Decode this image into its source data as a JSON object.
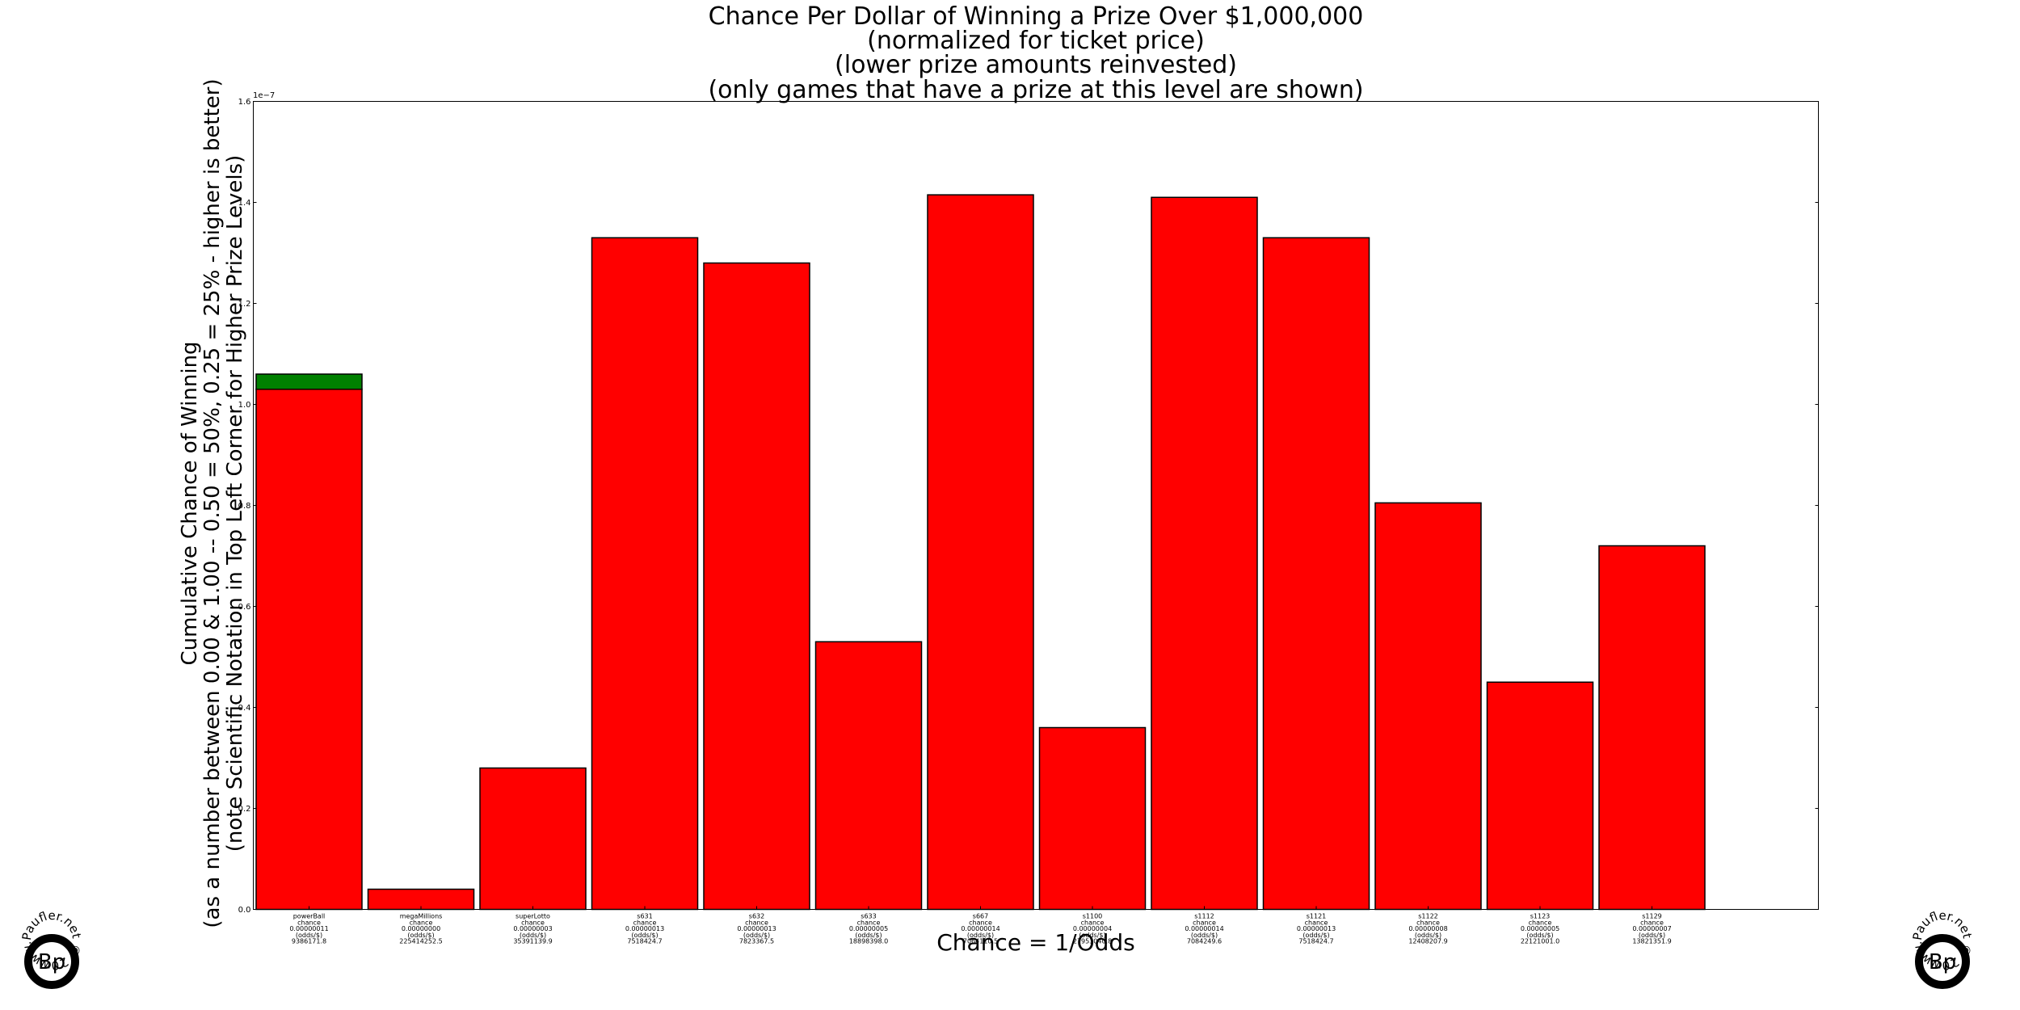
{
  "chart_data": {
    "type": "bar",
    "stacked": true,
    "title_lines": [
      "Chance Per Dollar of Winning a Prize Over $1,000,000",
      "(normalized for ticket price)",
      "(lower prize amounts reinvested)",
      "(only games that have a prize at this level are shown)"
    ],
    "ylabel_lines": [
      "Cumulative Chance of Winning",
      "(as a number between 0.00 & 1.00 -- 0.50 = 50%, 0.25 = 25% - higher is better)",
      "(note Scientific Notation in Top Left Corner for Higher Prize Levels)"
    ],
    "xlabel": "Chance = 1/Odds",
    "y_offset_label": "1e−7",
    "yticks": [
      "0.0",
      "0.2",
      "0.4",
      "0.6",
      "0.8",
      "1.0",
      "1.2",
      "1.4",
      "1.6"
    ],
    "ylim": [
      0,
      1.6
    ],
    "grid": false,
    "colors": {
      "base": "#ff0000",
      "extra": "#008000"
    },
    "categories": [
      {
        "lines": [
          "powerBall",
          "chance",
          "0.00000011",
          "(odds/$)",
          "9386171.8"
        ],
        "base": 1.03,
        "extra": 0.03
      },
      {
        "lines": [
          "megaMillions",
          "chance",
          "0.00000000",
          "(odds/$)",
          "225414252.5"
        ],
        "base": 0.04,
        "extra": 0
      },
      {
        "lines": [
          "superLotto",
          "chance",
          "0.00000003",
          "(odds/$)",
          "35391139.9"
        ],
        "base": 0.28,
        "extra": 0
      },
      {
        "lines": [
          "s631",
          "chance",
          "0.00000013",
          "(odds/$)",
          "7518424.7"
        ],
        "base": 1.33,
        "extra": 0
      },
      {
        "lines": [
          "s632",
          "chance",
          "0.00000013",
          "(odds/$)",
          "7823367.5"
        ],
        "base": 1.28,
        "extra": 0
      },
      {
        "lines": [
          "s633",
          "chance",
          "0.00000005",
          "(odds/$)",
          "18898398.0"
        ],
        "base": 0.53,
        "extra": 0
      },
      {
        "lines": [
          "s667",
          "chance",
          "0.00000014",
          "(odds/$)",
          "7064110.5"
        ],
        "base": 1.415,
        "extra": 0
      },
      {
        "lines": [
          "s1100",
          "chance",
          "0.00000004",
          "(odds/$)",
          "27953040.8"
        ],
        "base": 0.36,
        "extra": 0
      },
      {
        "lines": [
          "s1112",
          "chance",
          "0.00000014",
          "(odds/$)",
          "7084249.6"
        ],
        "base": 1.41,
        "extra": 0
      },
      {
        "lines": [
          "s1121",
          "chance",
          "0.00000013",
          "(odds/$)",
          "7518424.7"
        ],
        "base": 1.33,
        "extra": 0
      },
      {
        "lines": [
          "s1122",
          "chance",
          "0.00000008",
          "(odds/$)",
          "12408207.9"
        ],
        "base": 0.805,
        "extra": 0
      },
      {
        "lines": [
          "s1123",
          "chance",
          "0.00000005",
          "(odds/$)",
          "22121001.0"
        ],
        "base": 0.45,
        "extra": 0
      },
      {
        "lines": [
          "s1129",
          "chance",
          "0.00000007",
          "(odds/$)",
          "13821351.9"
        ],
        "base": 0.72,
        "extra": 0
      }
    ]
  },
  "logo": {
    "monogram": "Bp",
    "ring_text": "www.Paufler.net © 2014 © Brett Paufler © "
  }
}
